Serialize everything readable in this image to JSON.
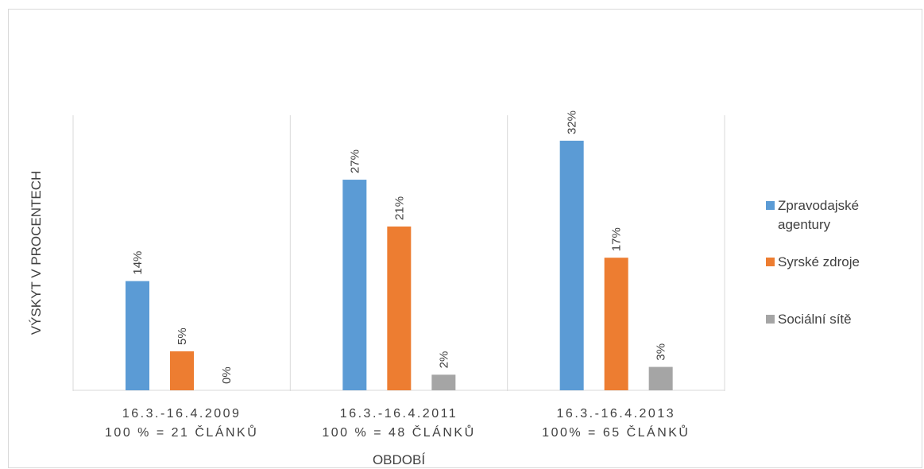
{
  "chart_data": {
    "type": "bar",
    "ylabel": "VÝSKYT V PROCENTECH",
    "xlabel": "OBDOBÍ",
    "categories": [
      [
        "16.3.-16.4.2009",
        "100 % = 21 ČLÁNKŮ"
      ],
      [
        "16.3.-16.4.2011",
        "100 % = 48 ČLÁNKŮ"
      ],
      [
        "16.3.-16.4.2013",
        "100% = 65 ČLÁNKŮ"
      ]
    ],
    "series": [
      {
        "name": "Zpravodajské agentury",
        "color": "#5B9BD5",
        "values": [
          14,
          27,
          32
        ],
        "labels": [
          "14%",
          "27%",
          "32%"
        ]
      },
      {
        "name": "Syrské zdroje",
        "color": "#ED7D31",
        "values": [
          5,
          21,
          17
        ],
        "labels": [
          "5%",
          "21%",
          "17%"
        ]
      },
      {
        "name": "Sociální sítě",
        "color": "#A5A5A5",
        "values": [
          0,
          2,
          3
        ],
        "labels": [
          "0%",
          "2%",
          "3%"
        ]
      }
    ],
    "ylim": [
      0,
      36
    ],
    "legend_position": "right",
    "grid": false
  }
}
